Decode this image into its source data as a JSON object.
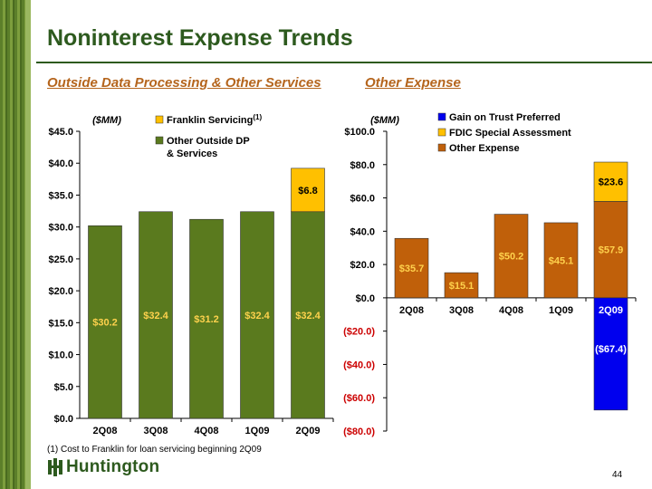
{
  "slide": {
    "title": "Noninterest Expense Trends",
    "left_subtitle": "Outside Data Processing & Other Services",
    "right_subtitle": "Other Expense",
    "footnote": "(1)  Cost to Franklin for loan servicing beginning 2Q09",
    "logo_text": "Huntington",
    "page_number": "44"
  },
  "colors": {
    "green": "#5a7a1e",
    "gold": "#ffc000",
    "orange": "#c0600a",
    "blue": "#0000ee",
    "title_green": "#2d5a1e",
    "subtitle_orange": "#b5651d"
  },
  "chart_data": [
    {
      "type": "bar",
      "stacked": true,
      "unit_label": "($MM)",
      "categories": [
        "2Q08",
        "3Q08",
        "4Q08",
        "1Q09",
        "2Q09"
      ],
      "series": [
        {
          "name": "Other Outside DP & Services",
          "values": [
            30.2,
            32.4,
            31.2,
            32.4,
            32.4
          ],
          "labels": [
            "$30.2",
            "$32.4",
            "$31.2",
            "$32.4",
            "$32.4"
          ]
        },
        {
          "name": "Franklin Servicing",
          "name_superscript": "(1)",
          "values": [
            0,
            0,
            0,
            0,
            6.8
          ],
          "labels": [
            "",
            "",
            "",
            "",
            "$6.8"
          ]
        }
      ],
      "ylim": [
        0,
        45
      ],
      "yticks": [
        "$0.0",
        "$5.0",
        "$10.0",
        "$15.0",
        "$20.0",
        "$25.0",
        "$30.0",
        "$35.0",
        "$40.0",
        "$45.0"
      ],
      "legend_position": "top-right"
    },
    {
      "type": "bar",
      "stacked": true,
      "unit_label": "($MM)",
      "categories": [
        "2Q08",
        "3Q08",
        "4Q08",
        "1Q09",
        "2Q09"
      ],
      "series": [
        {
          "name": "Gain on Trust Preferred",
          "values": [
            0,
            0,
            0,
            0,
            -67.4
          ],
          "labels": [
            "",
            "",
            "",
            "",
            "($67.4)"
          ]
        },
        {
          "name": "FDIC Special Assessment",
          "values": [
            0,
            0,
            0,
            0,
            23.6
          ],
          "labels": [
            "",
            "",
            "",
            "",
            "$23.6"
          ]
        },
        {
          "name": "Other Expense",
          "values": [
            35.7,
            15.1,
            50.2,
            45.1,
            57.9
          ],
          "labels": [
            "$35.7",
            "$15.1",
            "$50.2",
            "$45.1",
            "$57.9"
          ]
        }
      ],
      "ylim": [
        -80,
        100
      ],
      "yticks": [
        "($80.0)",
        "($60.0)",
        "($40.0)",
        "($20.0)",
        "$0.0",
        "$20.0",
        "$40.0",
        "$60.0",
        "$80.0",
        "$100.0"
      ],
      "legend_position": "top"
    }
  ]
}
